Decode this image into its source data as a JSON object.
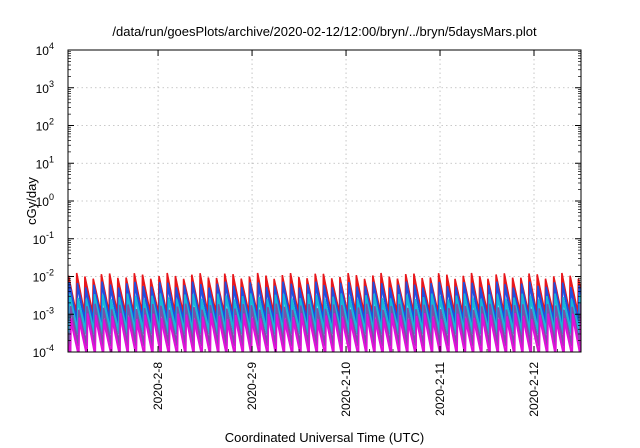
{
  "chart_data": {
    "type": "line",
    "title": "/data/run/goesPlots/archive/2020-02-12/12:00/bryn/../bryn/5daysMars.plot",
    "xlabel": "Coordinated Universal Time (UTC)",
    "ylabel": "cGy/day",
    "y_scale": "log",
    "ylim": [
      0.0001,
      10000
    ],
    "y_ticks": [
      {
        "base": "10",
        "exp": "-4"
      },
      {
        "base": "10",
        "exp": "-3"
      },
      {
        "base": "10",
        "exp": "-2"
      },
      {
        "base": "10",
        "exp": "-1"
      },
      {
        "base": "10",
        "exp": "0"
      },
      {
        "base": "10",
        "exp": "1"
      },
      {
        "base": "10",
        "exp": "2"
      },
      {
        "base": "10",
        "exp": "3"
      },
      {
        "base": "10",
        "exp": "4"
      }
    ],
    "xlim": [
      "2020-02-07T01:00",
      "2020-02-12T12:00"
    ],
    "x_ticks": [
      "2020-2-8",
      "2020-2-9",
      "2020-2-10",
      "2020-2-11",
      "2020-2-12"
    ],
    "x_tick_dates": [
      "2020-02-08T00:00",
      "2020-02-09T00:00",
      "2020-02-10T00:00",
      "2020-02-11T00:00",
      "2020-02-12T00:00"
    ],
    "grid": true,
    "pattern": "sawtooth",
    "sawtooth_period_hours": 2.1,
    "series": [
      {
        "color": "#e8161b",
        "peak": 0.0105,
        "trough": 0.0011
      },
      {
        "color": "#1f4fe0",
        "peak": 0.0062,
        "trough": 0.0007
      },
      {
        "color": "#18b7d8",
        "peak": 0.003,
        "trough": 0.00038
      },
      {
        "color": "#7b50a8",
        "peak": 0.0016,
        "trough": 0.00018
      },
      {
        "color": "#e010d8",
        "peak": 0.0009,
        "trough": 8.5e-05
      }
    ]
  }
}
